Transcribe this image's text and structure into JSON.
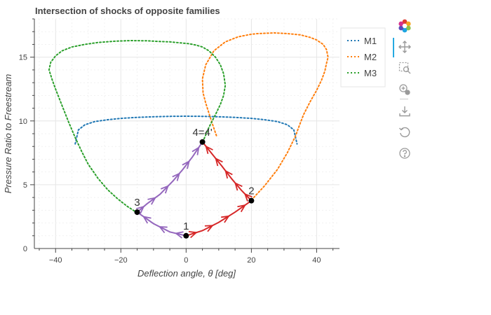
{
  "chart_data": {
    "type": "line",
    "title": "Intersection of shocks of opposite families",
    "xlabel": "Deflection angle, θ [deg]",
    "ylabel": "Pressure Ratio to Freestream",
    "xlim": [
      -46.5,
      47
    ],
    "ylim": [
      0,
      18
    ],
    "xticks": [
      -40,
      -20,
      0,
      20,
      40
    ],
    "yticks": [
      0,
      5,
      10,
      15
    ],
    "xtick_labels": [
      "−40",
      "−20",
      "0",
      "20",
      "40"
    ],
    "ytick_labels": [
      "0",
      "5",
      "10",
      "15"
    ],
    "grid": true,
    "legend_position": "top-right",
    "series": [
      {
        "name": "M1",
        "color": "#1f77b4",
        "style": "dotted",
        "x": [
          -34,
          -33,
          -31,
          -28,
          -24,
          -20,
          -15,
          -10,
          -5,
          0,
          5,
          10,
          15,
          20,
          24,
          28,
          31,
          33,
          34
        ],
        "y": [
          8.2,
          9.3,
          9.7,
          9.95,
          10.1,
          10.2,
          10.28,
          10.33,
          10.36,
          10.37,
          10.36,
          10.33,
          10.28,
          10.2,
          10.1,
          9.95,
          9.7,
          9.3,
          8.2
        ]
      },
      {
        "name": "M2",
        "color": "#ff7f0e",
        "style": "dotted",
        "x": [
          20,
          24,
          28,
          31,
          33.5,
          34.5,
          36,
          38,
          40,
          41.5,
          42.5,
          43,
          43.5,
          43,
          42,
          40,
          38,
          35,
          31,
          27,
          22,
          20,
          16,
          12,
          8.5,
          6,
          5,
          5.2,
          6,
          7,
          8,
          9.5
        ],
        "y": [
          3.8,
          4.9,
          6.2,
          7.5,
          8.8,
          9.5,
          10.5,
          11.5,
          12.4,
          13.2,
          13.9,
          14.5,
          15,
          15.6,
          16,
          16.35,
          16.55,
          16.75,
          16.85,
          16.9,
          16.85,
          16.8,
          16.6,
          16.2,
          15.5,
          14.4,
          13.3,
          12.2,
          11.4,
          10.6,
          9.8,
          8.7
        ]
      },
      {
        "name": "M3",
        "color": "#2ca02c",
        "style": "dotted",
        "x": [
          -15,
          -18,
          -21,
          -24,
          -27,
          -30,
          -32,
          -34,
          -36,
          -38,
          -40,
          -41,
          -42,
          -41.5,
          -40,
          -38,
          -35,
          -31,
          -27,
          -22,
          -17,
          -12,
          -8,
          -5,
          -3,
          -1,
          1,
          3,
          5,
          7,
          9,
          10.5,
          11.5,
          12,
          11.5,
          10.5,
          9,
          7,
          5
        ],
        "y": [
          2.8,
          3.3,
          3.9,
          4.6,
          5.5,
          6.6,
          7.6,
          8.7,
          9.9,
          11.2,
          12.5,
          13.2,
          14,
          14.6,
          15.1,
          15.5,
          15.8,
          16,
          16.15,
          16.25,
          16.3,
          16.28,
          16.23,
          16.2,
          16.15,
          16.1,
          16.05,
          15.95,
          15.8,
          15.5,
          15,
          14.4,
          13.7,
          12.8,
          12,
          11.3,
          10.5,
          9.5,
          8.3
        ]
      }
    ],
    "paths": [
      {
        "color": "#9467bd",
        "x": [
          0,
          -5,
          -10,
          -15
        ],
        "y": [
          1,
          1.3,
          1.95,
          2.85
        ]
      },
      {
        "color": "#9467bd",
        "x": [
          -15,
          -12,
          -8,
          -4,
          -1,
          2,
          5
        ],
        "y": [
          2.85,
          3.5,
          4.25,
          5.3,
          6.2,
          7.2,
          8.35
        ]
      },
      {
        "color": "#d62728",
        "x": [
          0,
          5,
          10,
          15,
          20
        ],
        "y": [
          1,
          1.4,
          2.05,
          2.85,
          3.75
        ]
      },
      {
        "color": "#d62728",
        "x": [
          20,
          17,
          14,
          11,
          8,
          5
        ],
        "y": [
          3.75,
          4.55,
          5.45,
          6.45,
          7.4,
          8.35
        ]
      }
    ],
    "points": [
      {
        "label": "1",
        "x": 0,
        "y": 1
      },
      {
        "label": "2",
        "x": 20,
        "y": 3.75
      },
      {
        "label": "3",
        "x": -15,
        "y": 2.85
      },
      {
        "label": "4=4'",
        "x": 5,
        "y": 8.35
      }
    ]
  },
  "toolbar": {
    "logo_icon": "bokeh-logo-icon",
    "tools": [
      "pan-icon",
      "box-zoom-icon",
      "wheel-zoom-icon",
      "save-icon",
      "reset-icon",
      "help-icon"
    ]
  }
}
